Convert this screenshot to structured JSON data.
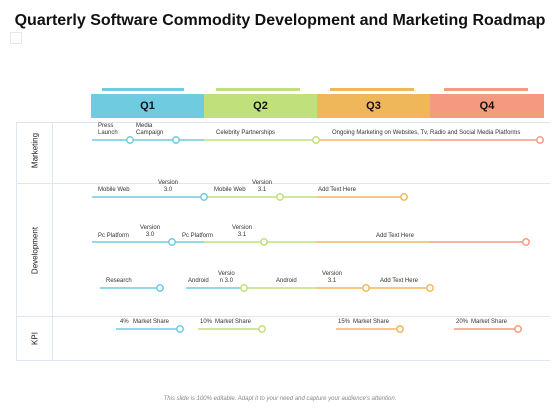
{
  "title": "Quarterly Software Commodity Development and Marketing Roadmap",
  "quarters": [
    {
      "label": "Q1",
      "color": "#6ecbe0"
    },
    {
      "label": "Q2",
      "color": "#bfe07a"
    },
    {
      "label": "Q3",
      "color": "#f0b75a"
    },
    {
      "label": "Q4",
      "color": "#f59a80"
    }
  ],
  "rows": {
    "marketing": "Marketing",
    "development": "Development",
    "kpi": "KPI"
  },
  "marketing": {
    "press_launch": "Press\nLaunch",
    "media_campaign": "Media\nCampaign",
    "celebrity": "Celebrity Partnerships",
    "ongoing": "Ongoing Marketing on Websites, Tv, Radio and Social Media Platforms"
  },
  "dev1": {
    "mobile_web_1": "Mobile Web",
    "version_30": "Version\n3.0",
    "mobile_web_2": "Mobile Web",
    "version_31": "Version\n3.1",
    "add_text": "Add Text Here"
  },
  "dev2": {
    "pc_platform_1": "Pc Platform",
    "version_30": "Version\n3.0",
    "pc_platform_2": "Pc Platform",
    "version_31": "Version\n3.1",
    "add_text": "Add Text Here"
  },
  "dev3": {
    "research": "Research",
    "android_1": "Android",
    "version_30": "Versio\nn 3.0",
    "android_2": "Android",
    "version_31": "Version\n3.1",
    "add_text": "Add Text Here"
  },
  "kpi": {
    "k1_pct": "4%",
    "k1_label": "Market Share",
    "k2_pct": "10%",
    "k2_label": "Market Share",
    "k3_pct": "15%",
    "k3_label": "Market Share",
    "k4_pct": "20%",
    "k4_label": "Market Share"
  },
  "footer": "This slide is 100% editable. Adapt it to your need and capture your audience's attention."
}
